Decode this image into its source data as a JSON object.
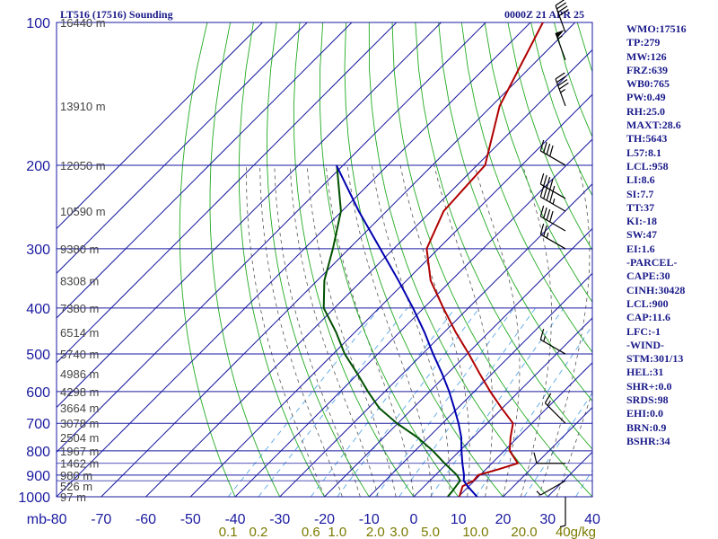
{
  "header": {
    "station": "LT516 (17516) Sounding",
    "valid_time": "0000Z 21 APR 25"
  },
  "indices": [
    "WMO:17516",
    "TP:279",
    "MW:126",
    "FRZ:639",
    "WB0:765",
    "PW:0.49",
    "RH:25.0",
    "MAXT:28.6",
    "TH:5643",
    "L57:8.1",
    "LCL:958",
    "LI:8.6",
    "SI:7.7",
    "TT:37",
    "KI:-18",
    "SW:47",
    "EI:1.6",
    "-PARCEL-",
    "CAPE:30",
    "CINH:30428",
    "LCL:900",
    "CAP:11.6",
    "LFC:-1",
    "-WIND-",
    "STM:301/13",
    "HEL:31",
    "SHR+:0.0",
    "SRDS:98",
    "EHI:0.0",
    "BRN:0.9",
    "BSHR:34"
  ],
  "colors": {
    "background": "#ffffff",
    "grid": "#1a1aa0",
    "isotherm": "#1a1aa0",
    "dry_adiabat": "#22aa22",
    "moist_adiabat": "#555555",
    "mixing_ratio": "#5aa8e8",
    "temperature": "#b00000",
    "dewpoint": "#005000",
    "parcel": "#0000b0",
    "pressure_label": "#1a1aa0",
    "height_label": "#444444",
    "temp_tick": "#1a1aa0",
    "mixing_tick": "#7a7a00",
    "text": "#1a1a8a",
    "wind_barb": "#000000"
  },
  "chart_data": {
    "type": "skew-t log-p",
    "y_axis_unit": "mb",
    "x_axis_unit": "",
    "mixing_ratio_unit": "g/kg",
    "pressure_levels": [
      100,
      200,
      300,
      400,
      500,
      600,
      700,
      800,
      900,
      1000
    ],
    "temp_ticks": [
      -80,
      -70,
      -60,
      -50,
      -40,
      -30,
      -20,
      -10,
      0,
      10,
      20,
      30,
      40
    ],
    "temp_tick_labels": [
      "-80",
      "-70",
      "-60",
      "-50",
      "-40",
      "-30",
      "-20",
      "-10",
      "0",
      "10",
      "20",
      "30",
      "40"
    ],
    "mixing_ratios": [
      0.1,
      0.2,
      0.6,
      1.0,
      2.0,
      3.0,
      5.0,
      10.0,
      20.0,
      40.0
    ],
    "mixing_ratio_labels": [
      "0.1",
      "0.2",
      "0.6",
      "1.0",
      "2.0",
      "3.0",
      "5.0",
      "10.0",
      "20.0",
      "40g/kg"
    ],
    "height_levels": [
      {
        "p": 100,
        "label": "16440 m"
      },
      {
        "p": 150,
        "label": "13910 m"
      },
      {
        "p": 200,
        "label": "12050 m"
      },
      {
        "p": 250,
        "label": "10590 m"
      },
      {
        "p": 300,
        "label": "9380 m"
      },
      {
        "p": 350,
        "label": "8308 m"
      },
      {
        "p": 400,
        "label": "7380 m"
      },
      {
        "p": 450,
        "label": "6514 m"
      },
      {
        "p": 500,
        "label": "5740 m"
      },
      {
        "p": 550,
        "label": "4986 m"
      },
      {
        "p": 600,
        "label": "4298 m"
      },
      {
        "p": 650,
        "label": "3664 m"
      },
      {
        "p": 700,
        "label": "3078 m"
      },
      {
        "p": 750,
        "label": "2504 m"
      },
      {
        "p": 800,
        "label": "1967 m"
      },
      {
        "p": 850,
        "label": "1462 m"
      },
      {
        "p": 900,
        "label": "980 m"
      },
      {
        "p": 950,
        "label": "526 m"
      },
      {
        "p": 1000,
        "label": "97 m"
      }
    ],
    "series": [
      {
        "name": "temperature",
        "points": [
          [
            1000,
            10.2
          ],
          [
            975,
            9.4
          ],
          [
            950,
            8.6
          ],
          [
            925,
            9.8
          ],
          [
            900,
            9.6
          ],
          [
            875,
            12.8
          ],
          [
            850,
            15.8
          ],
          [
            800,
            11.2
          ],
          [
            750,
            8.4
          ],
          [
            700,
            5.8
          ],
          [
            650,
            -0.2
          ],
          [
            600,
            -6.4
          ],
          [
            550,
            -12.8
          ],
          [
            500,
            -19.6
          ],
          [
            450,
            -27.4
          ],
          [
            400,
            -35.6
          ],
          [
            350,
            -44.6
          ],
          [
            300,
            -52.6
          ],
          [
            250,
            -57.2
          ],
          [
            200,
            -58.2
          ],
          [
            150,
            -68.2
          ],
          [
            100,
            -77.2
          ]
        ]
      },
      {
        "name": "dewpoint",
        "points": [
          [
            1000,
            7.6
          ],
          [
            975,
            7.4
          ],
          [
            950,
            7.1
          ],
          [
            925,
            6.8
          ],
          [
            900,
            4.8
          ],
          [
            850,
            -0.6
          ],
          [
            800,
            -6.0
          ],
          [
            750,
            -12.4
          ],
          [
            700,
            -20.2
          ],
          [
            650,
            -27.6
          ],
          [
            600,
            -33.8
          ],
          [
            550,
            -40.2
          ],
          [
            500,
            -47.4
          ],
          [
            450,
            -54.2
          ],
          [
            400,
            -62.4
          ],
          [
            350,
            -68.4
          ],
          [
            300,
            -73.6
          ],
          [
            250,
            -80.2
          ],
          [
            200,
            -91.4
          ]
        ]
      },
      {
        "name": "parcel",
        "points": [
          [
            1000,
            14.2
          ],
          [
            950,
            9.7
          ],
          [
            925,
            7.6
          ],
          [
            900,
            6.4
          ],
          [
            850,
            3.4
          ],
          [
            800,
            0.4
          ],
          [
            750,
            -2.6
          ],
          [
            700,
            -6.4
          ],
          [
            650,
            -10.8
          ],
          [
            600,
            -15.6
          ],
          [
            550,
            -21.2
          ],
          [
            500,
            -27.6
          ],
          [
            450,
            -34.4
          ],
          [
            400,
            -42.4
          ],
          [
            350,
            -51.8
          ],
          [
            300,
            -63.0
          ],
          [
            250,
            -76.2
          ],
          [
            200,
            -91.5
          ]
        ]
      }
    ],
    "wind_barbs": [
      {
        "p": 105,
        "dir": 340,
        "kts": 40
      },
      {
        "p": 120,
        "dir": 340,
        "kts": 55
      },
      {
        "p": 150,
        "dir": 340,
        "kts": 45
      },
      {
        "p": 200,
        "dir": 300,
        "kts": 40
      },
      {
        "p": 235,
        "dir": 300,
        "kts": 45
      },
      {
        "p": 250,
        "dir": 300,
        "kts": 45
      },
      {
        "p": 275,
        "dir": 300,
        "kts": 40
      },
      {
        "p": 300,
        "dir": 300,
        "kts": 25
      },
      {
        "p": 500,
        "dir": 300,
        "kts": 15
      },
      {
        "p": 700,
        "dir": 315,
        "kts": 15
      },
      {
        "p": 850,
        "dir": 270,
        "kts": 10
      },
      {
        "p": 925,
        "dir": 240,
        "kts": 5
      },
      {
        "p": 1000,
        "dir": 180,
        "kts": 5
      }
    ]
  }
}
